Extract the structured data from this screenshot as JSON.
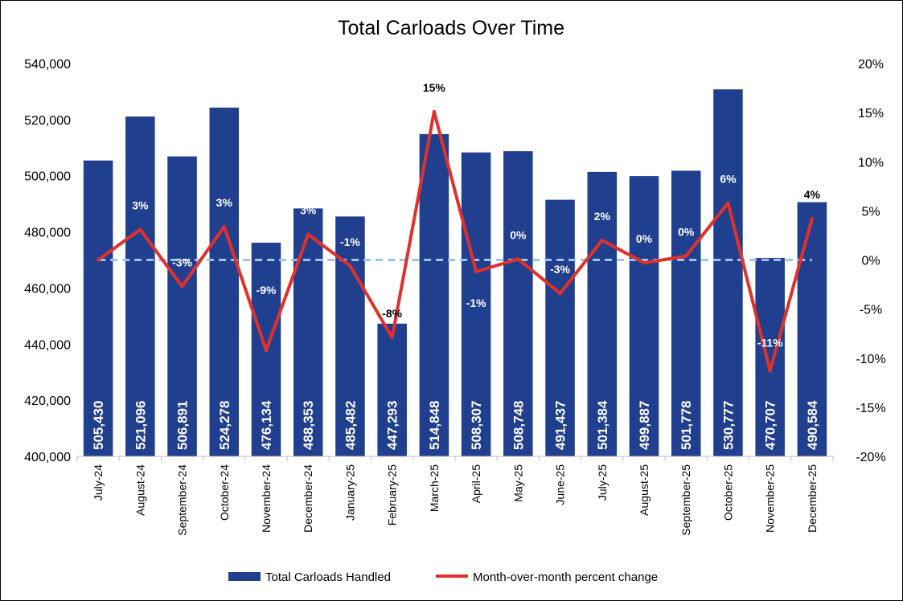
{
  "chart_data": {
    "type": "bar+line",
    "title": "Total Carloads Over Time",
    "categories": [
      "July-24",
      "August-24",
      "September-24",
      "October-24",
      "November-24",
      "December-24",
      "January-25",
      "February-25",
      "March-25",
      "April-25",
      "May-25",
      "June-25",
      "July-25",
      "August-25",
      "September-25",
      "October-25",
      "November-25",
      "December-25"
    ],
    "series": [
      {
        "name": "Total Carloads Handled",
        "type": "bar",
        "axis": "left",
        "color": "#213F8F",
        "values": [
          505430,
          521096,
          506891,
          524278,
          476134,
          488353,
          485482,
          447293,
          514848,
          508307,
          508748,
          491437,
          501384,
          499887,
          501778,
          530777,
          470707,
          490584
        ],
        "labels": [
          "505,430",
          "521,096",
          "506,891",
          "524,278",
          "476,134",
          "488,353",
          "485,482",
          "447,293",
          "514,848",
          "508,307",
          "508,748",
          "491,437",
          "501,384",
          "499,887",
          "501,778",
          "530,777",
          "470,707",
          "490,584"
        ]
      },
      {
        "name": "Month-over-month percent change",
        "type": "line",
        "axis": "right",
        "color": "#E0312A",
        "values": [
          0,
          3.1,
          -2.7,
          3.4,
          -9.2,
          2.6,
          -0.6,
          -7.9,
          15.1,
          -1.2,
          0.1,
          -3.4,
          2.0,
          -0.3,
          0.4,
          5.8,
          -11.3,
          4.2
        ],
        "labels": [
          "",
          "3%",
          "-3%",
          "3%",
          "-9%",
          "3%",
          "-1%",
          "-8%",
          "15%",
          "-1%",
          "0%",
          "-3%",
          "2%",
          "0%",
          "0%",
          "6%",
          "-11%",
          "4%"
        ]
      }
    ],
    "y_left": {
      "range": [
        400000,
        540000
      ],
      "ticks": [
        "400,000",
        "420,000",
        "440,000",
        "460,000",
        "480,000",
        "500,000",
        "520,000",
        "540,000"
      ]
    },
    "y_right": {
      "range": [
        -20,
        20
      ],
      "ticks": [
        "-20%",
        "-15%",
        "-10%",
        "-5%",
        "0%",
        "5%",
        "10%",
        "15%",
        "20%"
      ]
    },
    "reference_line": {
      "value": 0,
      "style": "dashed",
      "color": "#9DC3E6"
    },
    "legend": {
      "position": "bottom",
      "items": [
        "Total Carloads Handled",
        "Month-over-month percent change"
      ]
    },
    "grid": false
  }
}
